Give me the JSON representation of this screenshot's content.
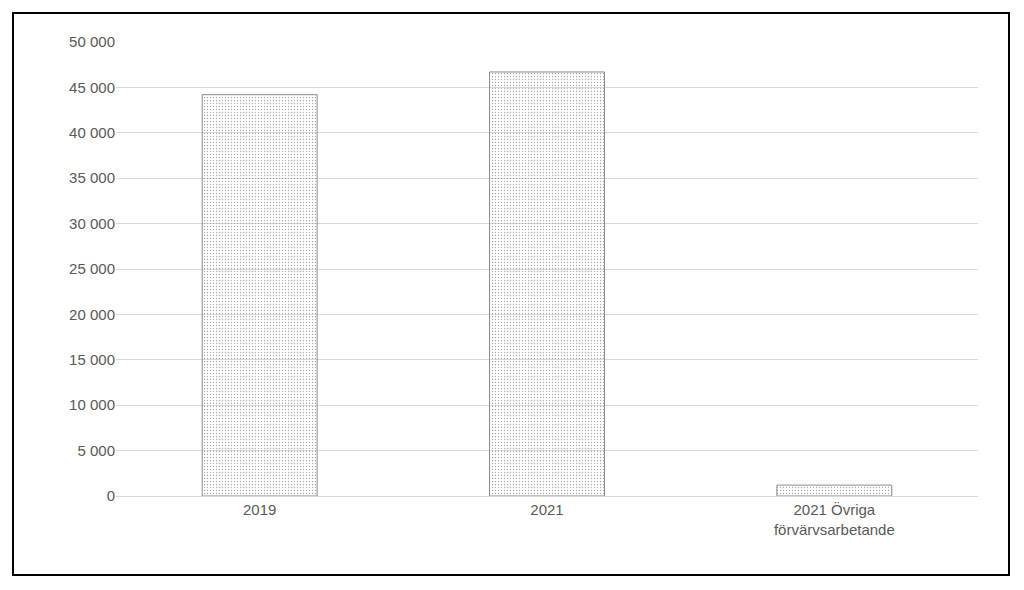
{
  "chart_data": {
    "type": "bar",
    "categories": [
      "2019",
      "2021",
      "2021 Övriga förvärvsarbetande"
    ],
    "values": [
      44200,
      46700,
      1200
    ],
    "color": "#c4c4c4",
    "ylim": [
      0,
      50000
    ],
    "yticks": [
      0,
      {
        "value": 5000,
        "label": "5 000"
      },
      {
        "value": 10000,
        "label": "10 000"
      },
      {
        "value": 15000,
        "label": "15 000"
      },
      {
        "value": 20000,
        "label": "20 000"
      },
      {
        "value": 25000,
        "label": "25 000"
      },
      {
        "value": 30000,
        "label": "30 000"
      },
      {
        "value": 35000,
        "label": "35 000"
      },
      {
        "value": 40000,
        "label": "40 000"
      },
      {
        "value": 45000,
        "label": "45 000"
      },
      {
        "value": 50000,
        "label": "50 000"
      }
    ],
    "grid": true
  }
}
